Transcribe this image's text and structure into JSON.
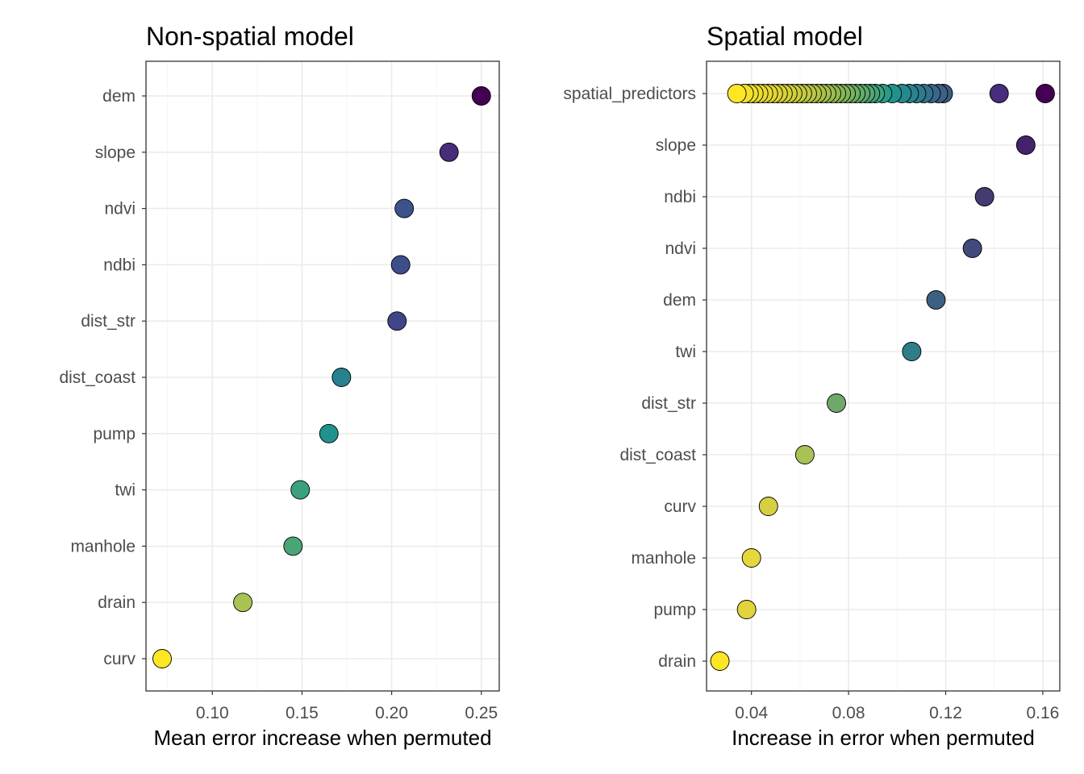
{
  "chart_data": [
    {
      "type": "scatter",
      "title": "Non-spatial model",
      "xlabel": "Mean error increase when permuted",
      "ylabel": "",
      "xlim": [
        0.063,
        0.26
      ],
      "xticks": [
        0.1,
        0.15,
        0.2,
        0.25
      ],
      "xtick_labels": [
        "0.10",
        "0.15",
        "0.20",
        "0.25"
      ],
      "grid": true,
      "categories": [
        "dem",
        "slope",
        "ndvi",
        "ndbi",
        "dist_str",
        "dist_coast",
        "pump",
        "twi",
        "manhole",
        "drain",
        "curv"
      ],
      "points": [
        {
          "variable": "dem",
          "x": 0.25,
          "color": "#440154"
        },
        {
          "variable": "slope",
          "x": 0.232,
          "color": "#472d7b"
        },
        {
          "variable": "ndvi",
          "x": 0.207,
          "color": "#3b528b"
        },
        {
          "variable": "ndbi",
          "x": 0.205,
          "color": "#3d4e8a"
        },
        {
          "variable": "dist_str",
          "x": 0.203,
          "color": "#414487"
        },
        {
          "variable": "dist_coast",
          "x": 0.172,
          "color": "#26828e"
        },
        {
          "variable": "pump",
          "x": 0.165,
          "color": "#21918c"
        },
        {
          "variable": "twi",
          "x": 0.149,
          "color": "#3aa17f"
        },
        {
          "variable": "manhole",
          "x": 0.145,
          "color": "#4aa576"
        },
        {
          "variable": "drain",
          "x": 0.117,
          "color": "#a8c254"
        },
        {
          "variable": "curv",
          "x": 0.072,
          "color": "#fde725"
        }
      ]
    },
    {
      "type": "scatter",
      "title": "Spatial model",
      "xlabel": "Increase in error when permuted",
      "ylabel": "",
      "xlim": [
        0.0215,
        0.167
      ],
      "xticks": [
        0.04,
        0.08,
        0.12,
        0.16
      ],
      "xtick_labels": [
        "0.04",
        "0.08",
        "0.12",
        "0.16"
      ],
      "grid": true,
      "categories": [
        "spatial_predictors",
        "slope",
        "ndbi",
        "ndvi",
        "dem",
        "twi",
        "dist_str",
        "dist_coast",
        "curv",
        "manhole",
        "pump",
        "drain"
      ],
      "points": [
        {
          "variable": "spatial_predictors",
          "x": 0.161,
          "color": "#440154"
        },
        {
          "variable": "spatial_predictors",
          "x": 0.142,
          "color": "#472d7b"
        },
        {
          "variable": "spatial_predictors",
          "x": 0.119,
          "color": "#3e5a82"
        },
        {
          "variable": "spatial_predictors",
          "x": 0.117,
          "color": "#3d6086"
        },
        {
          "variable": "spatial_predictors",
          "x": 0.114,
          "color": "#3a6689"
        },
        {
          "variable": "spatial_predictors",
          "x": 0.111,
          "color": "#35708b"
        },
        {
          "variable": "spatial_predictors",
          "x": 0.108,
          "color": "#2f7a8d"
        },
        {
          "variable": "spatial_predictors",
          "x": 0.105,
          "color": "#2a838e"
        },
        {
          "variable": "spatial_predictors",
          "x": 0.102,
          "color": "#25888e"
        },
        {
          "variable": "spatial_predictors",
          "x": 0.098,
          "color": "#21918c"
        },
        {
          "variable": "spatial_predictors",
          "x": 0.094,
          "color": "#2a9c85"
        },
        {
          "variable": "spatial_predictors",
          "x": 0.091,
          "color": "#3aa17f"
        },
        {
          "variable": "spatial_predictors",
          "x": 0.089,
          "color": "#45a479"
        },
        {
          "variable": "spatial_predictors",
          "x": 0.087,
          "color": "#52a772"
        },
        {
          "variable": "spatial_predictors",
          "x": 0.085,
          "color": "#5ba96d"
        },
        {
          "variable": "spatial_predictors",
          "x": 0.083,
          "color": "#64ac68"
        },
        {
          "variable": "spatial_predictors",
          "x": 0.081,
          "color": "#6daf64"
        },
        {
          "variable": "spatial_predictors",
          "x": 0.079,
          "color": "#77b25f"
        },
        {
          "variable": "spatial_predictors",
          "x": 0.077,
          "color": "#80b45a"
        },
        {
          "variable": "spatial_predictors",
          "x": 0.075,
          "color": "#89b756"
        },
        {
          "variable": "spatial_predictors",
          "x": 0.073,
          "color": "#92ba52"
        },
        {
          "variable": "spatial_predictors",
          "x": 0.071,
          "color": "#9bbd4f"
        },
        {
          "variable": "spatial_predictors",
          "x": 0.069,
          "color": "#a3c04c"
        },
        {
          "variable": "spatial_predictors",
          "x": 0.067,
          "color": "#abc249"
        },
        {
          "variable": "spatial_predictors",
          "x": 0.065,
          "color": "#b2c546"
        },
        {
          "variable": "spatial_predictors",
          "x": 0.063,
          "color": "#b9c744"
        },
        {
          "variable": "spatial_predictors",
          "x": 0.061,
          "color": "#bfc942"
        },
        {
          "variable": "spatial_predictors",
          "x": 0.059,
          "color": "#c5cb40"
        },
        {
          "variable": "spatial_predictors",
          "x": 0.057,
          "color": "#cbcd3e"
        },
        {
          "variable": "spatial_predictors",
          "x": 0.055,
          "color": "#d0cf3c"
        },
        {
          "variable": "spatial_predictors",
          "x": 0.053,
          "color": "#d5d13a"
        },
        {
          "variable": "spatial_predictors",
          "x": 0.051,
          "color": "#dad338"
        },
        {
          "variable": "spatial_predictors",
          "x": 0.049,
          "color": "#ded536"
        },
        {
          "variable": "spatial_predictors",
          "x": 0.047,
          "color": "#e2d734"
        },
        {
          "variable": "spatial_predictors",
          "x": 0.045,
          "color": "#e6d932"
        },
        {
          "variable": "spatial_predictors",
          "x": 0.043,
          "color": "#eadb30"
        },
        {
          "variable": "spatial_predictors",
          "x": 0.041,
          "color": "#eedd2e"
        },
        {
          "variable": "spatial_predictors",
          "x": 0.039,
          "color": "#f2df2c"
        },
        {
          "variable": "spatial_predictors",
          "x": 0.037,
          "color": "#f6e12a"
        },
        {
          "variable": "spatial_predictors",
          "x": 0.034,
          "color": "#fde725"
        },
        {
          "variable": "slope",
          "x": 0.153,
          "color": "#46226c"
        },
        {
          "variable": "ndbi",
          "x": 0.136,
          "color": "#453b72"
        },
        {
          "variable": "ndvi",
          "x": 0.131,
          "color": "#414a7a"
        },
        {
          "variable": "dem",
          "x": 0.116,
          "color": "#3c6082"
        },
        {
          "variable": "twi",
          "x": 0.106,
          "color": "#2e7d8a"
        },
        {
          "variable": "dist_str",
          "x": 0.075,
          "color": "#6fa86a"
        },
        {
          "variable": "dist_coast",
          "x": 0.062,
          "color": "#a8c254"
        },
        {
          "variable": "curv",
          "x": 0.047,
          "color": "#d7cf42"
        },
        {
          "variable": "manhole",
          "x": 0.04,
          "color": "#e6d83a"
        },
        {
          "variable": "pump",
          "x": 0.038,
          "color": "#e2d43d"
        },
        {
          "variable": "drain",
          "x": 0.027,
          "color": "#fde725"
        }
      ]
    }
  ]
}
